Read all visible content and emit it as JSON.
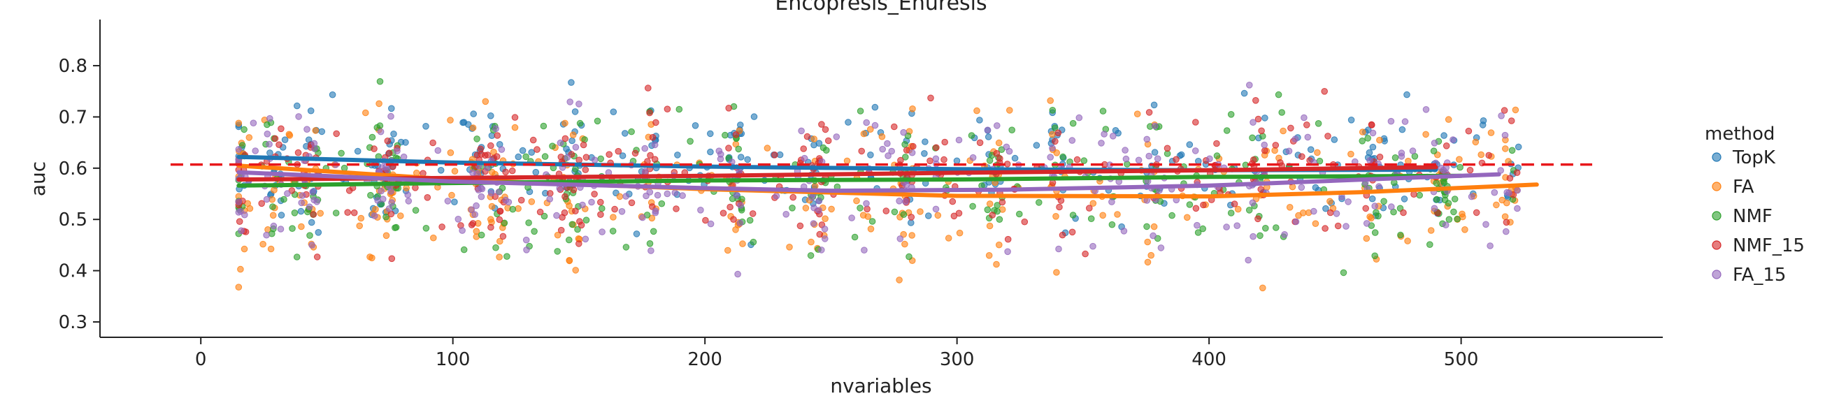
{
  "chart_data": {
    "type": "scatter",
    "title": "Encopresis_Enuresis",
    "xlabel": "nvariables",
    "ylabel": "auc",
    "xlim": [
      -40,
      580
    ],
    "ylim": [
      0.27,
      0.89
    ],
    "xticks": [
      0,
      100,
      200,
      300,
      400,
      500
    ],
    "yticks": [
      0.3,
      0.4,
      0.5,
      0.6,
      0.7,
      0.8
    ],
    "grid": false,
    "legend_title": "method",
    "legend_position": "right",
    "reference_line": {
      "y": 0.607,
      "x_range": [
        -12,
        552
      ],
      "color": "#e8171b",
      "style": "dashed"
    },
    "x_clusters": [
      15,
      29,
      44,
      70,
      76,
      110,
      118,
      145,
      150,
      178,
      212,
      245,
      280,
      315,
      340,
      378,
      420,
      465,
      492,
      520
    ],
    "series": [
      {
        "name": "TopK",
        "color": "#1f77b4",
        "x_range": [
          15,
          515
        ],
        "center": 0.61,
        "spread": 0.055,
        "n": 320,
        "trend": [
          [
            15,
            0.622
          ],
          [
            100,
            0.611
          ],
          [
            200,
            0.603
          ],
          [
            300,
            0.598
          ],
          [
            400,
            0.596
          ],
          [
            490,
            0.597
          ]
        ]
      },
      {
        "name": "FA",
        "color": "#ff7f0e",
        "x_range": [
          15,
          530
        ],
        "center": 0.56,
        "spread": 0.075,
        "n": 330,
        "trend": [
          [
            15,
            0.605
          ],
          [
            100,
            0.578
          ],
          [
            200,
            0.559
          ],
          [
            300,
            0.546
          ],
          [
            400,
            0.545
          ],
          [
            460,
            0.553
          ],
          [
            530,
            0.568
          ]
        ]
      },
      {
        "name": "NMF",
        "color": "#2ca02c",
        "x_range": [
          15,
          500
        ],
        "center": 0.57,
        "spread": 0.07,
        "n": 320,
        "trend": [
          [
            15,
            0.566
          ],
          [
            100,
            0.571
          ],
          [
            200,
            0.576
          ],
          [
            300,
            0.578
          ],
          [
            400,
            0.583
          ],
          [
            500,
            0.585
          ]
        ]
      },
      {
        "name": "NMF_15",
        "color": "#d62728",
        "x_range": [
          15,
          515
        ],
        "center": 0.585,
        "spread": 0.06,
        "n": 330,
        "trend": [
          [
            15,
            0.578
          ],
          [
            100,
            0.581
          ],
          [
            200,
            0.585
          ],
          [
            300,
            0.591
          ],
          [
            400,
            0.596
          ],
          [
            490,
            0.602
          ]
        ]
      },
      {
        "name": "FA_15",
        "color": "#9467bd",
        "x_range": [
          15,
          520
        ],
        "center": 0.575,
        "spread": 0.065,
        "n": 320,
        "trend": [
          [
            15,
            0.592
          ],
          [
            100,
            0.574
          ],
          [
            200,
            0.561
          ],
          [
            250,
            0.556
          ],
          [
            320,
            0.558
          ],
          [
            400,
            0.566
          ],
          [
            515,
            0.588
          ]
        ]
      }
    ]
  }
}
